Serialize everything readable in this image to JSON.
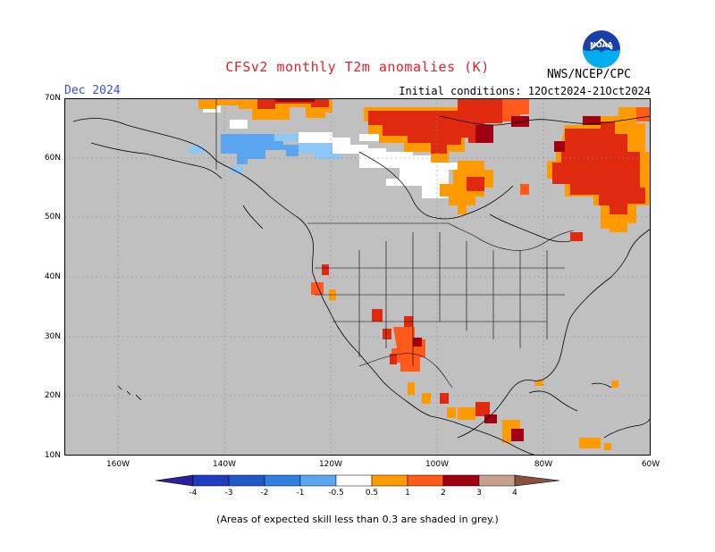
{
  "header": {
    "title": "CFSv2 monthly T2m anomalies (K)",
    "valid_month": "Dec 2024",
    "initial_conditions": "Initial conditions: 12Oct2024-21Oct2024",
    "agency": "NWS/NCEP/CPC",
    "logo_text": "NOAA"
  },
  "axes": {
    "lat_labels": [
      "70N",
      "60N",
      "50N",
      "40N",
      "30N",
      "20N",
      "10N"
    ],
    "lon_labels": [
      "160W",
      "140W",
      "120W",
      "100W",
      "80W",
      "60W"
    ],
    "lat_range": [
      10,
      70
    ],
    "lon_range": [
      -170,
      -60
    ]
  },
  "colorbar": {
    "labels": [
      "-4",
      "-3",
      "-2",
      "-1",
      "-0.5",
      "0.5",
      "1",
      "2",
      "3",
      "4"
    ],
    "colors": [
      "#2a1f9c",
      "#1f58c8",
      "#2f80e0",
      "#5aa6f0",
      "#8ec8f8",
      "#ffffff",
      "#ff9a00",
      "#ff5a1a",
      "#e02a10",
      "#a00010",
      "#c8a090",
      "#8a5040"
    ]
  },
  "map": {
    "background_color": "#c0c0c0",
    "land_outline_color": "#000000",
    "grid": true
  },
  "footnote": "(Areas of expected skill less than 0.3 are shaded in grey.)"
}
